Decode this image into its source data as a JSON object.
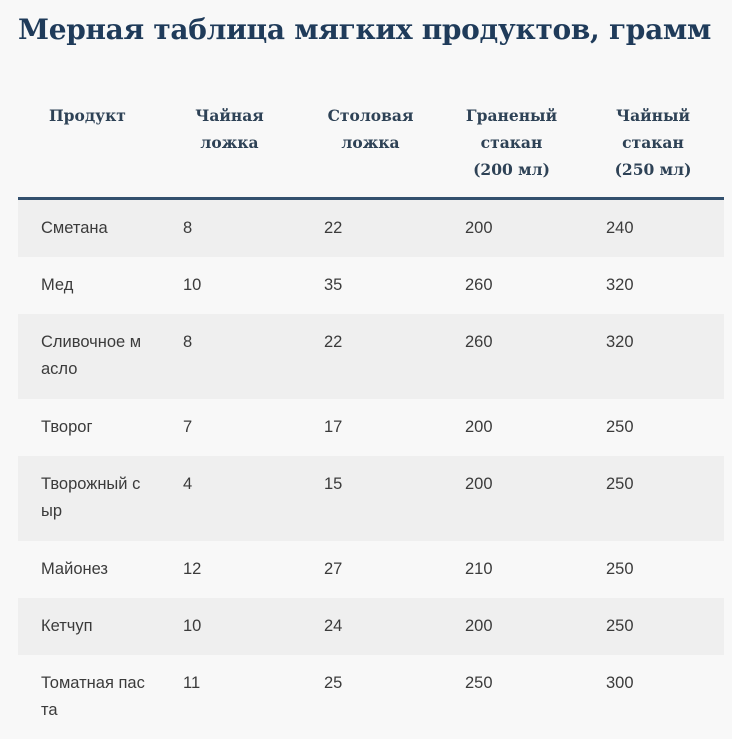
{
  "title": "Мерная таблица мягких продуктов, грамм",
  "table": {
    "headers": [
      [
        "Продукт"
      ],
      [
        "Чайная",
        "ложка"
      ],
      [
        "Столовая",
        "ложка"
      ],
      [
        "Граненый",
        "стакан",
        "(200 мл)"
      ],
      [
        "Чайный",
        "стакан",
        "(250 мл)"
      ]
    ],
    "rows": [
      [
        "Сметана",
        "8",
        "22",
        "200",
        "240"
      ],
      [
        "Мед",
        "10",
        "35",
        "260",
        "320"
      ],
      [
        "Сливочное масло",
        "8",
        "22",
        "260",
        "320"
      ],
      [
        "Творог",
        "7",
        "17",
        "200",
        "250"
      ],
      [
        "Творожный сыр",
        "4",
        "15",
        "200",
        "250"
      ],
      [
        "Майонез",
        "12",
        "27",
        "210",
        "250"
      ],
      [
        "Кетчуп",
        "10",
        "24",
        "200",
        "250"
      ],
      [
        "Томатная паста",
        "11",
        "25",
        "250",
        "300"
      ]
    ]
  },
  "chart_data": {
    "type": "table",
    "columns": [
      "Продукт",
      "Чайная ложка",
      "Столовая ложка",
      "Граненый стакан (200 мл)",
      "Чайный стакан (250 мл)"
    ],
    "rows": [
      [
        "Сметана",
        8,
        22,
        200,
        240
      ],
      [
        "Мед",
        10,
        35,
        260,
        320
      ],
      [
        "Сливочное масло",
        8,
        22,
        260,
        320
      ],
      [
        "Творог",
        7,
        17,
        200,
        250
      ],
      [
        "Творожный сыр",
        4,
        15,
        200,
        250
      ],
      [
        "Майонез",
        12,
        27,
        210,
        250
      ],
      [
        "Кетчуп",
        10,
        24,
        200,
        250
      ],
      [
        "Томатная паста",
        11,
        25,
        250,
        300
      ]
    ]
  }
}
